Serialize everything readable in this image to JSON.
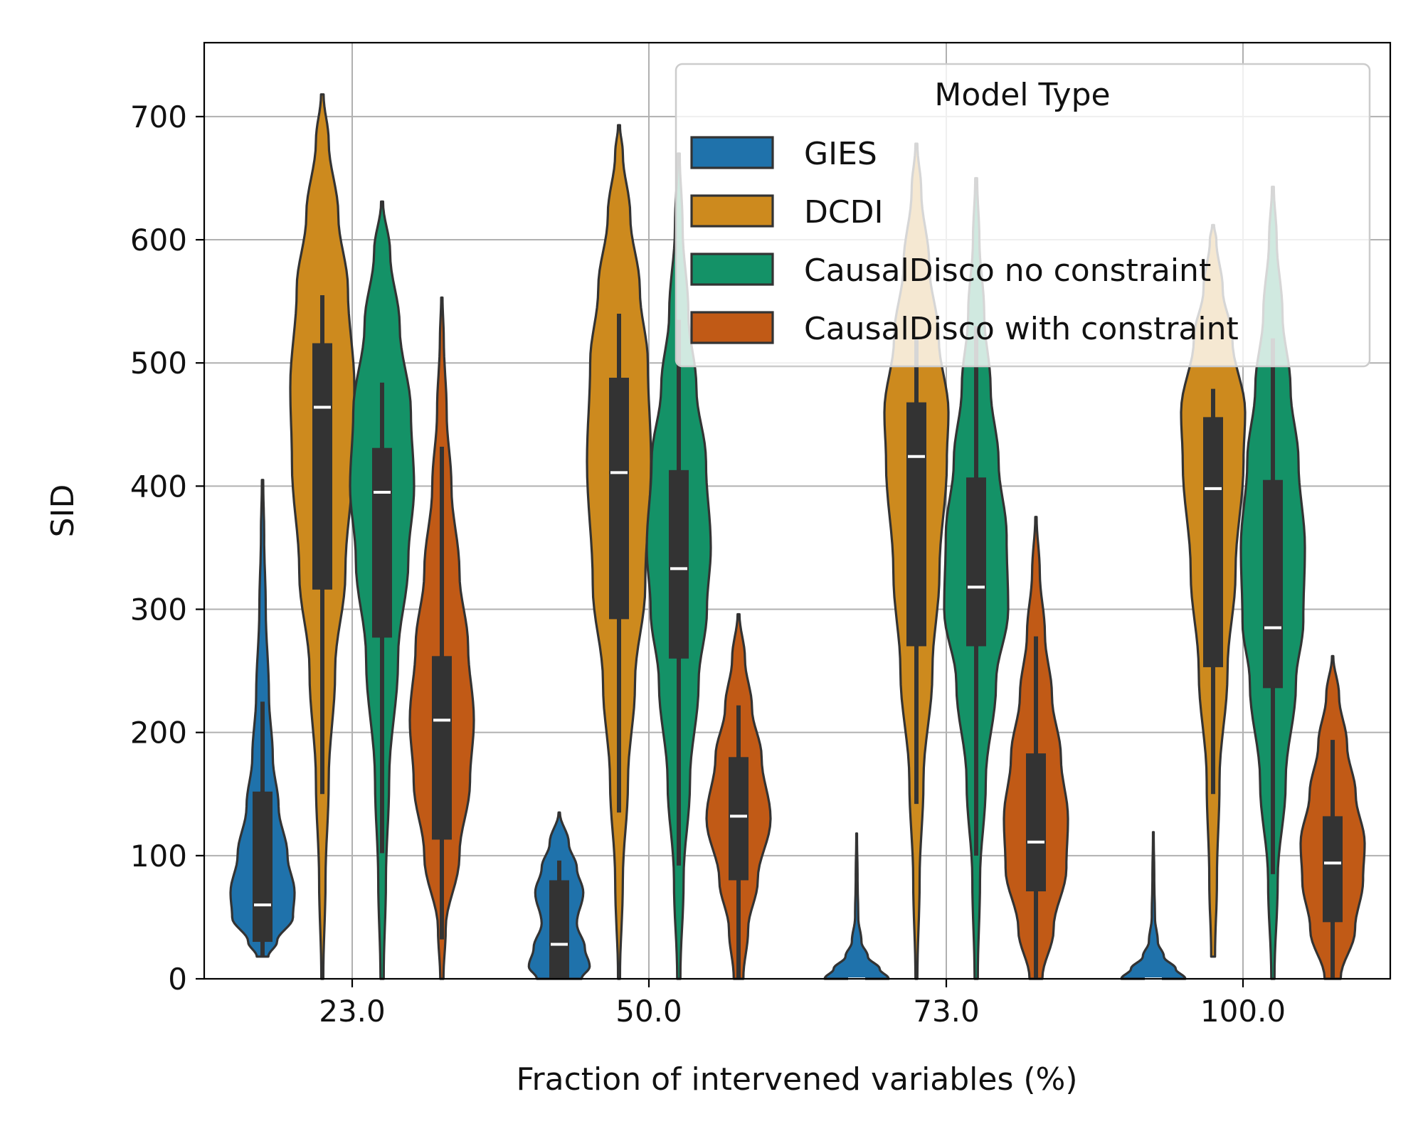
{
  "chart_data": {
    "type": "violin",
    "title": "",
    "xlabel": "Fraction of intervened variables (%)",
    "ylabel": "SID",
    "ylim": [
      0,
      760
    ],
    "yticks": [
      0,
      100,
      200,
      300,
      400,
      500,
      600,
      700
    ],
    "ytick_labels": [
      "0",
      "100",
      "200",
      "300",
      "400",
      "500",
      "600",
      "700"
    ],
    "categories": [
      "23.0",
      "50.0",
      "73.0",
      "100.0"
    ],
    "grid": true,
    "legend": {
      "title": "Model Type",
      "position": "top-right"
    },
    "series": [
      {
        "name": "GIES",
        "color": "#1F72AB",
        "violins": [
          {
            "min": 18,
            "max": 405,
            "q1": 30,
            "median": 60,
            "q3": 152,
            "whisker_low": 18,
            "whisker_high": 225,
            "profile": [
              [
                18,
                0.18
              ],
              [
                30,
                0.45
              ],
              [
                50,
                0.95
              ],
              [
                70,
                1.0
              ],
              [
                100,
                0.78
              ],
              [
                140,
                0.5
              ],
              [
                180,
                0.32
              ],
              [
                230,
                0.2
              ],
              [
                300,
                0.1
              ],
              [
                360,
                0.05
              ],
              [
                405,
                0.02
              ]
            ]
          },
          {
            "min": 0,
            "max": 135,
            "q1": 0,
            "median": 28,
            "q3": 80,
            "whisker_low": 0,
            "whisker_high": 96,
            "profile": [
              [
                0,
                0.7
              ],
              [
                10,
                0.95
              ],
              [
                25,
                0.8
              ],
              [
                45,
                0.55
              ],
              [
                70,
                0.75
              ],
              [
                90,
                0.55
              ],
              [
                110,
                0.3
              ],
              [
                135,
                0.02
              ]
            ]
          },
          {
            "min": 0,
            "max": 118,
            "q1": 0,
            "median": 0,
            "q3": 0,
            "whisker_low": 0,
            "whisker_high": 0,
            "profile": [
              [
                0,
                1.0
              ],
              [
                8,
                0.72
              ],
              [
                18,
                0.35
              ],
              [
                30,
                0.15
              ],
              [
                50,
                0.05
              ],
              [
                80,
                0.03
              ],
              [
                118,
                0.01
              ]
            ]
          },
          {
            "min": 0,
            "max": 119,
            "q1": 0,
            "median": 0,
            "q3": 0,
            "whisker_low": 0,
            "whisker_high": 0,
            "profile": [
              [
                0,
                1.0
              ],
              [
                8,
                0.7
              ],
              [
                18,
                0.33
              ],
              [
                30,
                0.14
              ],
              [
                50,
                0.05
              ],
              [
                80,
                0.03
              ],
              [
                119,
                0.01
              ]
            ]
          }
        ]
      },
      {
        "name": "DCDI",
        "color": "#CD8A1E",
        "violins": [
          {
            "min": 0,
            "max": 718,
            "q1": 316,
            "median": 464,
            "q3": 516,
            "whisker_low": 150,
            "whisker_high": 555,
            "profile": [
              [
                0,
                0.03
              ],
              [
                80,
                0.1
              ],
              [
                160,
                0.2
              ],
              [
                250,
                0.4
              ],
              [
                330,
                0.72
              ],
              [
                420,
                0.95
              ],
              [
                480,
                1.0
              ],
              [
                560,
                0.8
              ],
              [
                620,
                0.5
              ],
              [
                680,
                0.2
              ],
              [
                718,
                0.04
              ]
            ]
          },
          {
            "min": 0,
            "max": 693,
            "q1": 292,
            "median": 411,
            "q3": 488,
            "whisker_low": 135,
            "whisker_high": 540,
            "profile": [
              [
                0,
                0.03
              ],
              [
                80,
                0.12
              ],
              [
                160,
                0.28
              ],
              [
                240,
                0.5
              ],
              [
                320,
                0.82
              ],
              [
                420,
                1.0
              ],
              [
                500,
                0.9
              ],
              [
                560,
                0.65
              ],
              [
                620,
                0.35
              ],
              [
                670,
                0.12
              ],
              [
                693,
                0.03
              ]
            ]
          },
          {
            "min": 0,
            "max": 678,
            "q1": 270,
            "median": 424,
            "q3": 468,
            "whisker_low": 142,
            "whisker_high": 520,
            "profile": [
              [
                0,
                0.03
              ],
              [
                80,
                0.1
              ],
              [
                160,
                0.22
              ],
              [
                250,
                0.5
              ],
              [
                330,
                0.72
              ],
              [
                420,
                0.95
              ],
              [
                460,
                1.0
              ],
              [
                520,
                0.7
              ],
              [
                580,
                0.4
              ],
              [
                640,
                0.15
              ],
              [
                678,
                0.03
              ]
            ]
          },
          {
            "min": 18,
            "max": 612,
            "q1": 253,
            "median": 398,
            "q3": 456,
            "whisker_low": 150,
            "whisker_high": 479,
            "profile": [
              [
                18,
                0.06
              ],
              [
                80,
                0.12
              ],
              [
                160,
                0.2
              ],
              [
                250,
                0.45
              ],
              [
                330,
                0.7
              ],
              [
                420,
                0.95
              ],
              [
                460,
                1.0
              ],
              [
                520,
                0.6
              ],
              [
                560,
                0.3
              ],
              [
                600,
                0.1
              ],
              [
                612,
                0.03
              ]
            ]
          }
        ]
      },
      {
        "name": "CausalDisco no constraint",
        "color": "#149267",
        "violins": [
          {
            "min": 0,
            "max": 631,
            "q1": 277,
            "median": 395,
            "q3": 431,
            "whisker_low": 102,
            "whisker_high": 484,
            "profile": [
              [
                0,
                0.05
              ],
              [
                80,
                0.12
              ],
              [
                160,
                0.22
              ],
              [
                260,
                0.5
              ],
              [
                340,
                0.82
              ],
              [
                400,
                1.0
              ],
              [
                460,
                0.9
              ],
              [
                530,
                0.55
              ],
              [
                590,
                0.25
              ],
              [
                631,
                0.03
              ]
            ]
          },
          {
            "min": 0,
            "max": 670,
            "q1": 260,
            "median": 333,
            "q3": 413,
            "whisker_low": 92,
            "whisker_high": 535,
            "profile": [
              [
                0,
                0.05
              ],
              [
                80,
                0.15
              ],
              [
                160,
                0.35
              ],
              [
                240,
                0.62
              ],
              [
                300,
                0.88
              ],
              [
                350,
                1.0
              ],
              [
                420,
                0.85
              ],
              [
                480,
                0.55
              ],
              [
                540,
                0.3
              ],
              [
                610,
                0.12
              ],
              [
                670,
                0.03
              ]
            ]
          },
          {
            "min": 0,
            "max": 650,
            "q1": 270,
            "median": 318,
            "q3": 407,
            "whisker_low": 100,
            "whisker_high": 530,
            "profile": [
              [
                0,
                0.05
              ],
              [
                80,
                0.12
              ],
              [
                160,
                0.3
              ],
              [
                240,
                0.62
              ],
              [
                300,
                1.0
              ],
              [
                360,
                0.95
              ],
              [
                420,
                0.7
              ],
              [
                480,
                0.45
              ],
              [
                540,
                0.25
              ],
              [
                600,
                0.1
              ],
              [
                650,
                0.03
              ]
            ]
          },
          {
            "min": 0,
            "max": 643,
            "q1": 236,
            "median": 285,
            "q3": 405,
            "whisker_low": 85,
            "whisker_high": 520,
            "profile": [
              [
                0,
                0.05
              ],
              [
                80,
                0.15
              ],
              [
                160,
                0.4
              ],
              [
                240,
                0.72
              ],
              [
                290,
                0.95
              ],
              [
                350,
                1.0
              ],
              [
                420,
                0.8
              ],
              [
                480,
                0.55
              ],
              [
                540,
                0.3
              ],
              [
                600,
                0.12
              ],
              [
                643,
                0.03
              ]
            ]
          }
        ]
      },
      {
        "name": "CausalDisco with constraint",
        "color": "#C15A16",
        "violins": [
          {
            "min": 0,
            "max": 553,
            "q1": 113,
            "median": 210,
            "q3": 262,
            "whisker_low": 32,
            "whisker_high": 432,
            "profile": [
              [
                0,
                0.05
              ],
              [
                40,
                0.12
              ],
              [
                100,
                0.55
              ],
              [
                160,
                0.88
              ],
              [
                210,
                1.0
              ],
              [
                270,
                0.82
              ],
              [
                330,
                0.55
              ],
              [
                400,
                0.3
              ],
              [
                460,
                0.15
              ],
              [
                520,
                0.06
              ],
              [
                553,
                0.02
              ]
            ]
          },
          {
            "min": 0,
            "max": 296,
            "q1": 80,
            "median": 132,
            "q3": 180,
            "whisker_low": 0,
            "whisker_high": 222,
            "profile": [
              [
                0,
                0.15
              ],
              [
                40,
                0.3
              ],
              [
                80,
                0.6
              ],
              [
                130,
                1.0
              ],
              [
                180,
                0.72
              ],
              [
                220,
                0.42
              ],
              [
                260,
                0.2
              ],
              [
                296,
                0.03
              ]
            ]
          },
          {
            "min": 0,
            "max": 375,
            "q1": 71,
            "median": 111,
            "q3": 183,
            "whisker_low": 0,
            "whisker_high": 278,
            "profile": [
              [
                0,
                0.2
              ],
              [
                40,
                0.55
              ],
              [
                90,
                0.95
              ],
              [
                130,
                1.0
              ],
              [
                180,
                0.78
              ],
              [
                230,
                0.5
              ],
              [
                280,
                0.28
              ],
              [
                330,
                0.12
              ],
              [
                375,
                0.02
              ]
            ]
          },
          {
            "min": 0,
            "max": 262,
            "q1": 46,
            "median": 94,
            "q3": 132,
            "whisker_low": 0,
            "whisker_high": 194,
            "profile": [
              [
                0,
                0.25
              ],
              [
                40,
                0.7
              ],
              [
                80,
                0.95
              ],
              [
                110,
                1.0
              ],
              [
                150,
                0.72
              ],
              [
                190,
                0.45
              ],
              [
                230,
                0.2
              ],
              [
                262,
                0.02
              ]
            ]
          }
        ]
      }
    ]
  }
}
